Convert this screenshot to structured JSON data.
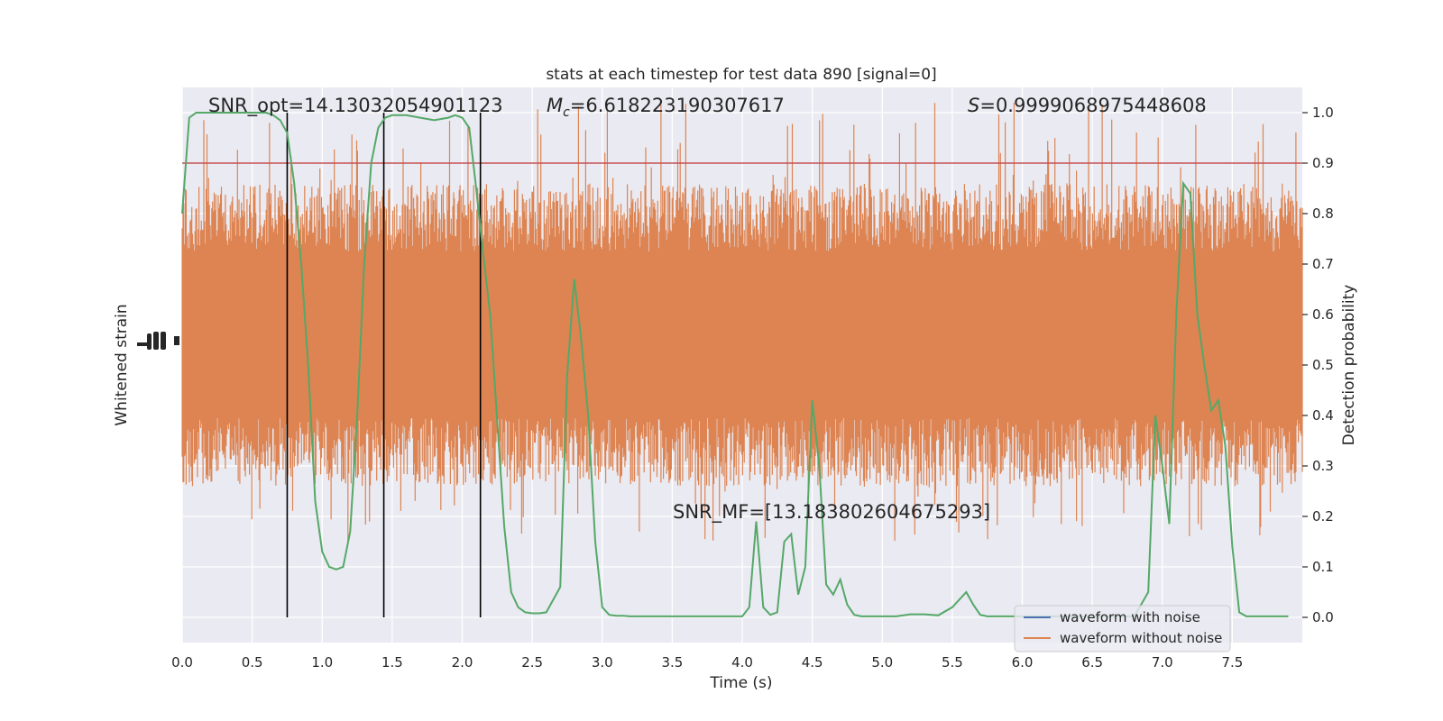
{
  "chart_data": {
    "type": "line",
    "title": "stats at each timestep for test data 890 [signal=0]",
    "xlabel": "Time (s)",
    "ylabel_left": "Whitened strain",
    "ylabel_right": "Detection probability",
    "xlim": [
      0,
      8
    ],
    "ylim_right": [
      -0.05,
      1.05
    ],
    "x_ticks": [
      0.0,
      0.5,
      1.0,
      1.5,
      2.0,
      2.5,
      3.0,
      3.5,
      4.0,
      4.5,
      5.0,
      5.5,
      6.0,
      6.5,
      7.0,
      7.5
    ],
    "x_tick_labels": [
      "0.0",
      "0.5",
      "1.0",
      "1.5",
      "2.0",
      "2.5",
      "3.0",
      "3.5",
      "4.0",
      "4.5",
      "5.0",
      "5.5",
      "6.0",
      "6.5",
      "7.0",
      "7.5"
    ],
    "y_right_ticks": [
      0.0,
      0.1,
      0.2,
      0.3,
      0.4,
      0.5,
      0.6,
      0.7,
      0.8,
      0.9,
      1.0
    ],
    "y_right_tick_labels": [
      "0.0",
      "0.1",
      "0.2",
      "0.3",
      "0.4",
      "0.5",
      "0.6",
      "0.7",
      "0.8",
      "0.9",
      "1.0"
    ],
    "threshold": 0.9,
    "vertical_markers_s": [
      0.75,
      1.44,
      2.13
    ],
    "noise_band": {
      "center": 0.56,
      "core_half_width": 0.165,
      "spike_half_width_range": [
        0.22,
        0.46
      ],
      "samples": 1400
    },
    "annotations": {
      "snr_opt": "SNR_opt=14.13032054901123",
      "mc_symbol": "M",
      "mc_sub": "c",
      "mc_value": "=6.618223190307617",
      "s_symbol": "S",
      "s_value": "=0.9999068975448608",
      "snr_mf": "SNR_MF=[13.183802604675293]"
    },
    "series": [
      {
        "name": "waveform with noise",
        "color": "#4c72b0"
      },
      {
        "name": "waveform without noise",
        "color": "#dd8452"
      },
      {
        "name": "detection probability",
        "color": "#55a868",
        "x": [
          0.0,
          0.05,
          0.1,
          0.15,
          0.2,
          0.3,
          0.4,
          0.5,
          0.6,
          0.65,
          0.7,
          0.75,
          0.8,
          0.85,
          0.9,
          0.95,
          1.0,
          1.05,
          1.1,
          1.15,
          1.2,
          1.25,
          1.3,
          1.35,
          1.4,
          1.45,
          1.5,
          1.55,
          1.6,
          1.7,
          1.8,
          1.9,
          1.95,
          2.0,
          2.05,
          2.1,
          2.15,
          2.2,
          2.3,
          2.35,
          2.4,
          2.45,
          2.5,
          2.55,
          2.6,
          2.7,
          2.75,
          2.8,
          2.85,
          2.9,
          2.95,
          3.0,
          3.05,
          3.1,
          3.15,
          3.2,
          3.25,
          3.3,
          3.4,
          3.5,
          3.6,
          3.7,
          3.8,
          3.9,
          4.0,
          4.05,
          4.1,
          4.15,
          4.2,
          4.25,
          4.3,
          4.35,
          4.4,
          4.45,
          4.5,
          4.55,
          4.6,
          4.65,
          4.7,
          4.75,
          4.8,
          4.85,
          4.9,
          4.95,
          5.0,
          5.05,
          5.1,
          5.2,
          5.3,
          5.4,
          5.5,
          5.6,
          5.65,
          5.7,
          5.75,
          5.8,
          5.85,
          5.9,
          5.95,
          6.0,
          6.1,
          6.2,
          6.3,
          6.4,
          6.5,
          6.6,
          6.7,
          6.8,
          6.9,
          6.95,
          7.0,
          7.05,
          7.1,
          7.15,
          7.2,
          7.25,
          7.3,
          7.35,
          7.4,
          7.45,
          7.5,
          7.55,
          7.6,
          7.65,
          7.7,
          7.75,
          7.8,
          7.85,
          7.9
        ],
        "y": [
          0.8,
          0.99,
          1.0,
          1.0,
          1.0,
          1.0,
          1.0,
          1.0,
          1.0,
          0.995,
          0.985,
          0.96,
          0.86,
          0.7,
          0.5,
          0.23,
          0.13,
          0.1,
          0.095,
          0.1,
          0.17,
          0.4,
          0.7,
          0.9,
          0.97,
          0.99,
          0.995,
          0.995,
          0.995,
          0.99,
          0.985,
          0.99,
          0.995,
          0.99,
          0.97,
          0.85,
          0.72,
          0.6,
          0.18,
          0.05,
          0.02,
          0.01,
          0.008,
          0.008,
          0.01,
          0.06,
          0.48,
          0.67,
          0.55,
          0.4,
          0.15,
          0.02,
          0.005,
          0.003,
          0.003,
          0.002,
          0.002,
          0.002,
          0.002,
          0.002,
          0.002,
          0.002,
          0.002,
          0.002,
          0.002,
          0.02,
          0.19,
          0.02,
          0.005,
          0.01,
          0.15,
          0.165,
          0.045,
          0.1,
          0.43,
          0.3,
          0.065,
          0.045,
          0.075,
          0.025,
          0.005,
          0.002,
          0.002,
          0.002,
          0.002,
          0.002,
          0.002,
          0.006,
          0.006,
          0.004,
          0.02,
          0.05,
          0.025,
          0.005,
          0.002,
          0.002,
          0.002,
          0.002,
          0.002,
          0.002,
          0.002,
          0.002,
          0.002,
          0.002,
          0.002,
          0.002,
          0.002,
          0.002,
          0.05,
          0.4,
          0.3,
          0.185,
          0.6,
          0.86,
          0.84,
          0.6,
          0.5,
          0.41,
          0.43,
          0.34,
          0.14,
          0.01,
          0.002,
          0.002,
          0.002,
          0.002,
          0.002,
          0.002,
          0.002
        ]
      }
    ],
    "legend": {
      "location": "lower-right",
      "entries": [
        "waveform with noise",
        "waveform without noise"
      ]
    }
  },
  "colors": {
    "plot_background": "#eaeaf2",
    "grid": "#ffffff",
    "threshold_line": "#c44e52",
    "markers": "#000000",
    "text": "#262626"
  }
}
